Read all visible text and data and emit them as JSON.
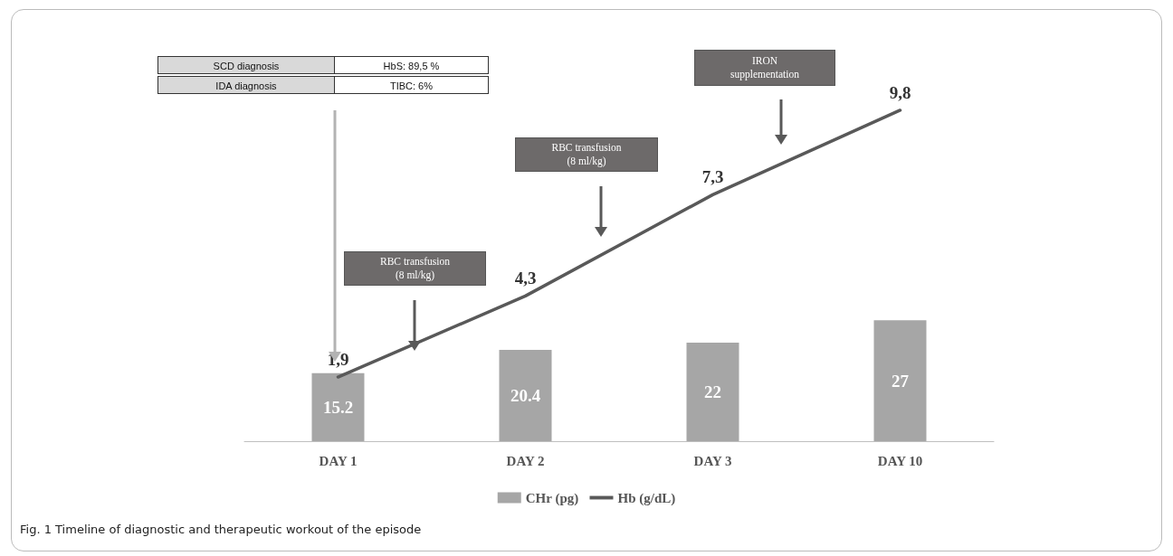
{
  "chart_data": {
    "type": "bar",
    "categories": [
      "DAY 1",
      "DAY 2",
      "DAY 3",
      "DAY 10"
    ],
    "series": [
      {
        "name": "CHr (pg)",
        "color": "#a6a6a6",
        "values": [
          15.2,
          20.4,
          22,
          27
        ],
        "value_labels": [
          "15.2",
          "20.4",
          "22",
          "27"
        ]
      },
      {
        "name": "Hb (g/dL)",
        "type": "line",
        "axis": "y2",
        "color": "#595959",
        "values": [
          1.9,
          4.3,
          7.3,
          9.8
        ],
        "value_labels": [
          "1,9",
          "4,3",
          "7,3",
          "9,8"
        ]
      }
    ],
    "tick_labels": "x",
    "legend": "bottom",
    "marker": "none",
    "line_style": "solid",
    "annotations": [
      "SCD diagnosis",
      "HbS: 89,5 %",
      "IDA diagnosis",
      "TIBC: 6%",
      "RBC transfusion (8 ml/kg)",
      "RBC transfusion (8 ml/kg)",
      "IRON supplementation",
      "Fig. 1 Timeline of diagnostic and therapeutic workout of the episode"
    ]
  }
}
